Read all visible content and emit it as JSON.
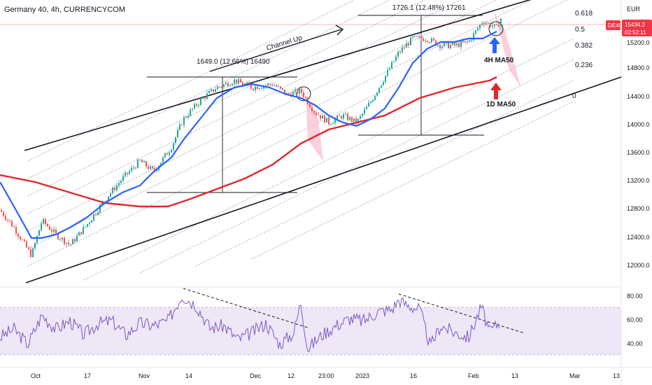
{
  "header": {
    "title": "Germany 40, 4h, CURRENCYCOM"
  },
  "price_axis": {
    "currency": "EUR",
    "ticks": [
      "15200.0",
      "14800.0",
      "14400.0",
      "14000.0",
      "13600.0",
      "13200.0",
      "12800.0",
      "12400.0",
      "12000.0"
    ]
  },
  "rsi_axis": {
    "ticks": [
      "80.00",
      "60.00",
      "40.00"
    ]
  },
  "time_axis": {
    "ticks": [
      "Oct",
      "17",
      "Nov",
      "14",
      "Dec",
      "12",
      "23:00",
      "2023",
      "16",
      "Feb",
      "13",
      "Mar",
      "13"
    ]
  },
  "symbol_badge": {
    "symbol": "DE40",
    "price": "15434.2",
    "countdown": "02:52:11"
  },
  "annotations": {
    "channel": "Channel Up",
    "rise_1": "1649.0 (12.66%) 16490",
    "rise_2": "1726.1 (12.48%) 17261",
    "ma_4h": "4H MA50",
    "ma_1d": "1D MA50",
    "fib_levels": [
      "0.618",
      "0.5",
      "0.382",
      "0.236",
      "0"
    ]
  },
  "colors": {
    "up": "#26a69a",
    "down": "#ef5350",
    "ma50_4h": "#2962ff",
    "ma50_1d": "#e0282c",
    "rsi": "#7e57c2",
    "rsi_band": "#ede7f6",
    "badge": "#f23645",
    "arrow_blue": "#2962ff",
    "arrow_red": "#e0282c"
  },
  "chart_data": [
    {
      "type": "candlestick",
      "ylim": [
        11700,
        15700
      ],
      "grid": false,
      "series": [
        {
          "name": "price",
          "points": [
            [
              0,
              12700
            ],
            [
              20,
              12450
            ],
            [
              45,
              12050
            ],
            [
              60,
              12550
            ],
            [
              80,
              12350
            ],
            [
              100,
              12200
            ],
            [
              125,
              12500
            ],
            [
              150,
              12850
            ],
            [
              175,
              13150
            ],
            [
              200,
              13400
            ],
            [
              220,
              13250
            ],
            [
              245,
              13600
            ],
            [
              262,
              14000
            ],
            [
              290,
              14300
            ],
            [
              310,
              14450
            ],
            [
              335,
              14550
            ],
            [
              360,
              14450
            ],
            [
              390,
              14500
            ],
            [
              410,
              14350
            ],
            [
              430,
              14400
            ],
            [
              450,
              14100
            ],
            [
              470,
              13950
            ],
            [
              490,
              14050
            ],
            [
              510,
              13950
            ],
            [
              530,
              14250
            ],
            [
              550,
              14600
            ],
            [
              570,
              14950
            ],
            [
              590,
              15150
            ],
            [
              610,
              15150
            ],
            [
              630,
              15050
            ],
            [
              650,
              15050
            ],
            [
              670,
              15100
            ],
            [
              690,
              15400
            ],
            [
              710,
              15300
            ],
            [
              716,
              15434
            ]
          ]
        },
        {
          "name": "ma50_4h",
          "points": [
            [
              0,
              13100
            ],
            [
              20,
              12750
            ],
            [
              45,
              12300
            ],
            [
              60,
              12300
            ],
            [
              80,
              12350
            ],
            [
              100,
              12450
            ],
            [
              125,
              12600
            ],
            [
              150,
              12800
            ],
            [
              175,
              12950
            ],
            [
              200,
              13050
            ],
            [
              220,
              13250
            ],
            [
              245,
              13450
            ],
            [
              262,
              13700
            ],
            [
              290,
              14050
            ],
            [
              310,
              14300
            ],
            [
              335,
              14450
            ],
            [
              360,
              14500
            ],
            [
              385,
              14450
            ],
            [
              410,
              14350
            ],
            [
              430,
              14300
            ],
            [
              450,
              14200
            ],
            [
              470,
              14050
            ],
            [
              490,
              13950
            ],
            [
              510,
              13900
            ],
            [
              530,
              14000
            ],
            [
              550,
              14150
            ],
            [
              570,
              14450
            ],
            [
              590,
              14800
            ],
            [
              610,
              15000
            ],
            [
              630,
              15100
            ],
            [
              650,
              15100
            ],
            [
              670,
              15150
            ],
            [
              690,
              15150
            ],
            [
              710,
              15250
            ]
          ]
        },
        {
          "name": "ma50_1d",
          "points": [
            [
              0,
              13200
            ],
            [
              50,
              13100
            ],
            [
              100,
              12950
            ],
            [
              150,
              12800
            ],
            [
              200,
              12750
            ],
            [
              240,
              12750
            ],
            [
              270,
              12850
            ],
            [
              310,
              13000
            ],
            [
              350,
              13150
            ],
            [
              390,
              13350
            ],
            [
              430,
              13650
            ],
            [
              470,
              13850
            ],
            [
              510,
              13950
            ],
            [
              550,
              14050
            ],
            [
              600,
              14300
            ],
            [
              650,
              14450
            ],
            [
              700,
              14550
            ],
            [
              710,
              14600
            ]
          ]
        }
      ]
    },
    {
      "type": "line",
      "ylim": [
        25,
        90
      ],
      "series": [
        {
          "name": "rsi",
          "points": [
            [
              0,
              48
            ],
            [
              20,
              55
            ],
            [
              40,
              42
            ],
            [
              60,
              67
            ],
            [
              80,
              55
            ],
            [
              100,
              62
            ],
            [
              120,
              50
            ],
            [
              140,
              60
            ],
            [
              160,
              62
            ],
            [
              180,
              50
            ],
            [
              200,
              60
            ],
            [
              220,
              58
            ],
            [
              240,
              62
            ],
            [
              260,
              84
            ],
            [
              280,
              76
            ],
            [
              300,
              56
            ],
            [
              320,
              58
            ],
            [
              340,
              46
            ],
            [
              360,
              52
            ],
            [
              380,
              60
            ],
            [
              400,
              42
            ],
            [
              420,
              52
            ],
            [
              430,
              78
            ],
            [
              440,
              38
            ],
            [
              460,
              50
            ],
            [
              480,
              58
            ],
            [
              500,
              64
            ],
            [
              520,
              62
            ],
            [
              540,
              70
            ],
            [
              560,
              72
            ],
            [
              570,
              80
            ],
            [
              580,
              76
            ],
            [
              600,
              72
            ],
            [
              615,
              40
            ],
            [
              630,
              58
            ],
            [
              650,
              52
            ],
            [
              670,
              48
            ],
            [
              688,
              74
            ],
            [
              700,
              52
            ],
            [
              712,
              60
            ]
          ]
        }
      ]
    }
  ]
}
